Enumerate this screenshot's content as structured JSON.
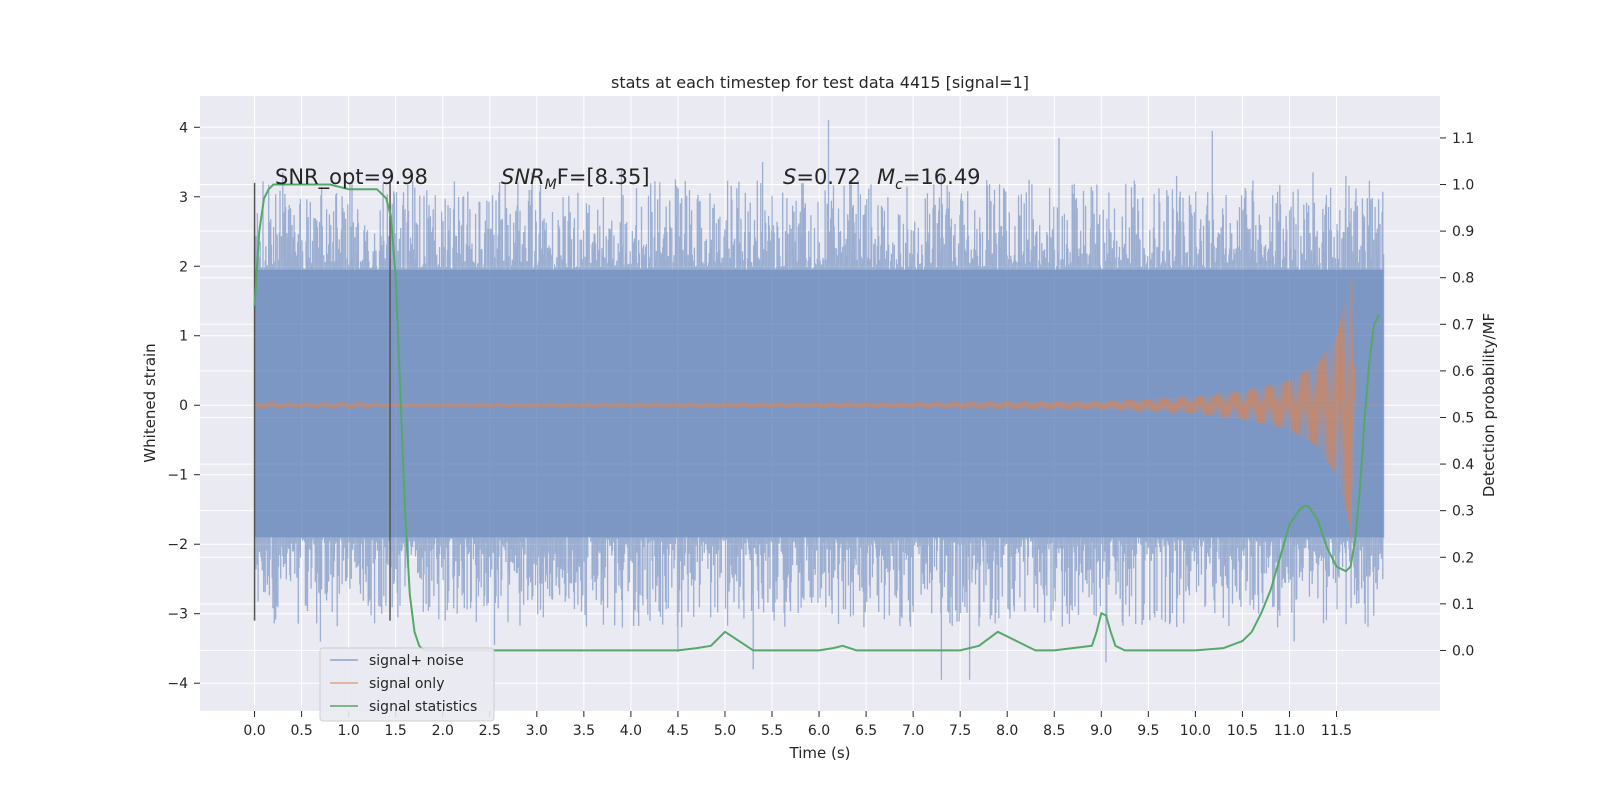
{
  "chart_data": {
    "type": "line",
    "title": "stats at each timestep for test data 4415 [signal=1]",
    "xlabel": "Time (s)",
    "ylabel": "Whitened strain",
    "y2label": "Detection probability/MF",
    "xlim": [
      -0.58,
      12.6
    ],
    "ylim": [
      -4.4,
      4.45
    ],
    "y2lim": [
      -0.13,
      1.19
    ],
    "xticks": [
      0.0,
      0.5,
      1.0,
      1.5,
      2.0,
      2.5,
      3.0,
      3.5,
      4.0,
      4.5,
      5.0,
      5.5,
      6.0,
      6.5,
      7.0,
      7.5,
      8.0,
      8.5,
      9.0,
      9.5,
      10.0,
      10.5,
      11.0,
      11.5
    ],
    "xtick_labels": [
      "0.0",
      "0.5",
      "1.0",
      "1.5",
      "2.0",
      "2.5",
      "3.0",
      "3.5",
      "4.0",
      "4.5",
      "5.0",
      "5.5",
      "6.0",
      "6.5",
      "7.0",
      "7.5",
      "8.0",
      "8.5",
      "9.0",
      "9.5",
      "10.0",
      "10.5",
      "11.0",
      "11.5"
    ],
    "yticks": [
      -4,
      -3,
      -2,
      -1,
      0,
      1,
      2,
      3,
      4
    ],
    "ytick_labels": [
      "−4",
      "−3",
      "−2",
      "−1",
      "0",
      "1",
      "2",
      "3",
      "4"
    ],
    "y2ticks": [
      0.0,
      0.1,
      0.2,
      0.3,
      0.4,
      0.5,
      0.6,
      0.7,
      0.8,
      0.9,
      1.0,
      1.1
    ],
    "y2tick_labels": [
      "0.0",
      "0.1",
      "0.2",
      "0.3",
      "0.4",
      "0.5",
      "0.6",
      "0.7",
      "0.8",
      "0.9",
      "1.0",
      "1.1"
    ],
    "grid": true,
    "legend_position": "lower-left",
    "annotations": {
      "snr_opt": "SNR_opt=9.98",
      "snr_mf_sym": "SNR",
      "snr_mf_sub": "M",
      "snr_mf_rest": "F=[8.35]",
      "s_sym": "S",
      "s_val": "=0.72",
      "mc_sym": "M",
      "mc_sub": "c",
      "mc_val": "=16.49"
    },
    "vlines": [
      {
        "x": 0.0,
        "ymin": -3.1,
        "ymax": 3.2
      },
      {
        "x": 1.44,
        "ymin": -3.1,
        "ymax": 3.2
      }
    ],
    "series": [
      {
        "name": "signal+ noise",
        "color": "#4c72b0",
        "axis": "left",
        "x_range": [
          0.0,
          12.0
        ],
        "sample_count": 1600,
        "core_band": [
          -1.9,
          1.95
        ],
        "peaks": [
          {
            "x": 6.1,
            "y": 4.1
          },
          {
            "x": 10.18,
            "y": 3.95
          },
          {
            "x": 8.55,
            "y": 3.85
          },
          {
            "x": 0.3,
            "y": 3.35
          },
          {
            "x": 3.9,
            "y": 3.4
          },
          {
            "x": 5.4,
            "y": 3.5
          },
          {
            "x": 2.95,
            "y": 3.35
          },
          {
            "x": 7.3,
            "y": 3.3
          },
          {
            "x": 9.8,
            "y": 3.3
          },
          {
            "x": 11.25,
            "y": 3.35
          },
          {
            "x": 11.6,
            "y": 3.3
          },
          {
            "x": 0.7,
            "y": -3.4
          },
          {
            "x": 2.55,
            "y": -3.45
          },
          {
            "x": 4.5,
            "y": -3.55
          },
          {
            "x": 5.3,
            "y": -3.8
          },
          {
            "x": 7.3,
            "y": -3.95
          },
          {
            "x": 7.6,
            "y": -3.95
          },
          {
            "x": 9.05,
            "y": -3.7
          },
          {
            "x": 11.05,
            "y": -3.4
          }
        ]
      },
      {
        "name": "signal only",
        "color": "#dd8452",
        "axis": "left",
        "x_range": [
          0.0,
          12.0
        ],
        "description_points": [
          {
            "x": 0.0,
            "amp": 0.03
          },
          {
            "x": 7.0,
            "amp": 0.04
          },
          {
            "x": 9.0,
            "amp": 0.06
          },
          {
            "x": 10.0,
            "amp": 0.12
          },
          {
            "x": 10.5,
            "amp": 0.2
          },
          {
            "x": 11.0,
            "amp": 0.35
          },
          {
            "x": 11.3,
            "amp": 0.6
          },
          {
            "x": 11.5,
            "amp": 1.0
          },
          {
            "x": 11.62,
            "amp": 1.6
          },
          {
            "x": 11.66,
            "amp": 2.0
          },
          {
            "x": 11.7,
            "amp": 0.0
          }
        ]
      },
      {
        "name": "signal statistics",
        "color": "#55a868",
        "axis": "right",
        "x": [
          0.0,
          0.05,
          0.1,
          0.15,
          0.2,
          0.3,
          0.5,
          0.8,
          1.0,
          1.1,
          1.2,
          1.3,
          1.35,
          1.4,
          1.45,
          1.5,
          1.55,
          1.6,
          1.65,
          1.7,
          1.75,
          1.8,
          2.0,
          3.0,
          4.0,
          4.5,
          4.7,
          4.85,
          5.0,
          5.15,
          5.3,
          5.5,
          6.0,
          6.15,
          6.25,
          6.4,
          7.0,
          7.5,
          7.7,
          7.9,
          8.1,
          8.3,
          8.5,
          8.9,
          8.95,
          9.0,
          9.05,
          9.1,
          9.15,
          9.25,
          9.5,
          10.0,
          10.3,
          10.5,
          10.6,
          10.7,
          10.8,
          10.9,
          11.0,
          11.1,
          11.15,
          11.2,
          11.3,
          11.4,
          11.5,
          11.6,
          11.65,
          11.7,
          11.75,
          11.8,
          11.85,
          11.9,
          11.95
        ],
        "y": [
          0.74,
          0.9,
          0.97,
          0.99,
          1.0,
          1.0,
          1.0,
          1.0,
          0.99,
          0.99,
          0.99,
          0.99,
          0.98,
          0.97,
          0.93,
          0.8,
          0.55,
          0.3,
          0.12,
          0.04,
          0.01,
          0.0,
          0.0,
          0.0,
          0.0,
          0.0,
          0.005,
          0.01,
          0.04,
          0.02,
          0.0,
          0.0,
          0.0,
          0.005,
          0.01,
          0.0,
          0.0,
          0.0,
          0.01,
          0.04,
          0.02,
          0.0,
          0.0,
          0.01,
          0.04,
          0.08,
          0.075,
          0.04,
          0.01,
          0.0,
          0.0,
          0.0,
          0.005,
          0.02,
          0.04,
          0.08,
          0.13,
          0.2,
          0.27,
          0.3,
          0.31,
          0.31,
          0.28,
          0.22,
          0.18,
          0.17,
          0.18,
          0.24,
          0.35,
          0.5,
          0.62,
          0.7,
          0.72
        ]
      }
    ]
  }
}
